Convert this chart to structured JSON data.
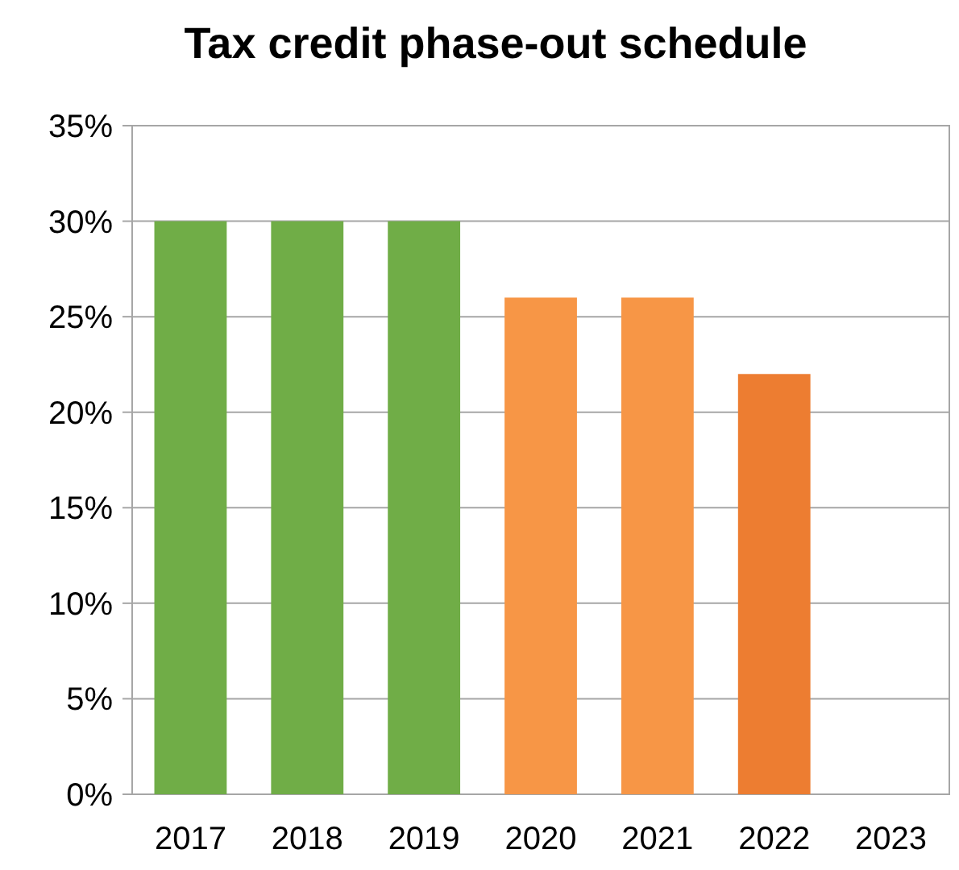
{
  "chart_data": {
    "type": "bar",
    "title": "Tax credit phase-out schedule",
    "categories": [
      "2017",
      "2018",
      "2019",
      "2020",
      "2021",
      "2022",
      "2023"
    ],
    "values": [
      30,
      30,
      30,
      26,
      26,
      22,
      0
    ],
    "colors": [
      "#70ad47",
      "#70ad47",
      "#70ad47",
      "#f79646",
      "#f79646",
      "#ed7d31",
      "#ed7d31"
    ],
    "ylim": [
      0,
      35
    ],
    "yticks": [
      {
        "value": 0,
        "label": "0%"
      },
      {
        "value": 5,
        "label": "5%"
      },
      {
        "value": 10,
        "label": "10%"
      },
      {
        "value": 15,
        "label": "15%"
      },
      {
        "value": 20,
        "label": "20%"
      },
      {
        "value": 25,
        "label": "25%"
      },
      {
        "value": 30,
        "label": "30%"
      },
      {
        "value": 35,
        "label": "35%"
      }
    ],
    "grid": "y"
  }
}
